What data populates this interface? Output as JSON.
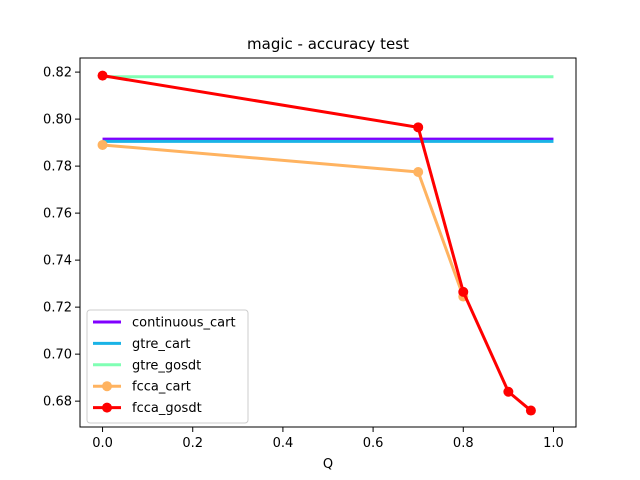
{
  "chart_data": {
    "type": "line",
    "title": "magic - accuracy test",
    "xlabel": "Q",
    "ylabel": "",
    "xlim": [
      -0.05,
      1.05
    ],
    "ylim": [
      0.669,
      0.826
    ],
    "xticks": [
      0.0,
      0.2,
      0.4,
      0.6,
      0.8,
      1.0
    ],
    "xtick_labels": [
      "0.0",
      "0.2",
      "0.4",
      "0.6",
      "0.8",
      "1.0"
    ],
    "yticks": [
      0.68,
      0.7,
      0.72,
      0.74,
      0.76,
      0.78,
      0.8,
      0.82
    ],
    "ytick_labels": [
      "0.68",
      "0.70",
      "0.72",
      "0.74",
      "0.76",
      "0.78",
      "0.80",
      "0.82"
    ],
    "grid": false,
    "legend_position": "lower-left",
    "series": [
      {
        "name": "continuous_cart",
        "color": "#8000ff",
        "marker": false,
        "x": [
          0.0,
          1.0
        ],
        "y": [
          0.7915,
          0.7915
        ]
      },
      {
        "name": "gtre_cart",
        "color": "#1ab3e6",
        "marker": false,
        "x": [
          0.0,
          1.0
        ],
        "y": [
          0.7905,
          0.7905
        ]
      },
      {
        "name": "gtre_gosdt",
        "color": "#80ffb4",
        "marker": false,
        "x": [
          0.0,
          1.0
        ],
        "y": [
          0.818,
          0.818
        ]
      },
      {
        "name": "fcca_cart",
        "color": "#ffb360",
        "marker": true,
        "x": [
          0.0,
          0.7,
          0.8
        ],
        "y": [
          0.789,
          0.7775,
          0.7245
        ]
      },
      {
        "name": "fcca_gosdt",
        "color": "#ff0000",
        "marker": true,
        "x": [
          0.0,
          0.7,
          0.8,
          0.9,
          0.95
        ],
        "y": [
          0.8185,
          0.7965,
          0.7265,
          0.684,
          0.676
        ]
      }
    ]
  }
}
